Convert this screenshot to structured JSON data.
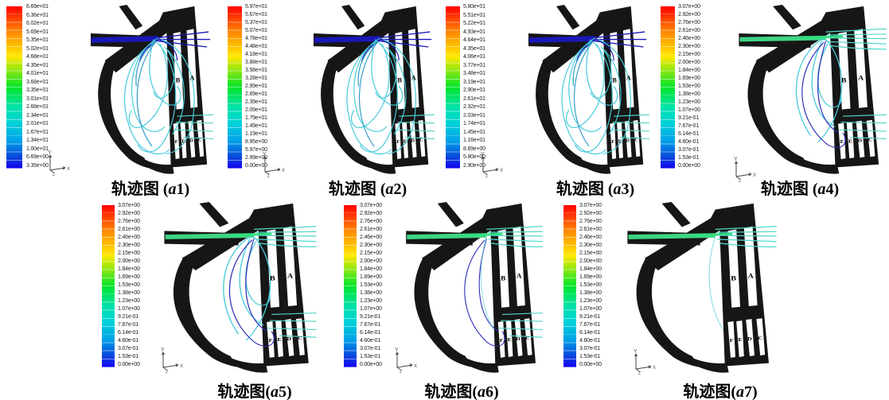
{
  "colors": {
    "mesh": "#161616",
    "jet_blue": "#1a17b8",
    "stream_cyan": "#45cbd9",
    "stream_teal": "#2f9cc8",
    "stream_dark": "#2b2bb5",
    "stream_green": "#3ed584",
    "stream_green2": "#2fe07c",
    "exit_aqua": "#52d8c8",
    "cb_top": "#ff0000",
    "cb_orange": "#ff8a00",
    "cb_yellow": "#ffe900",
    "cb_green": "#00e52a",
    "cb_spring": "#00e2a8",
    "cb_cyan": "#00d2d8",
    "cb_skyblue": "#00a0e8",
    "cb_blue": "#0a46dc",
    "cb_bottom": "#1400f0"
  },
  "axis_triad": {
    "y": "Y",
    "x": "X",
    "z": "Z"
  },
  "slat_labels": {
    "upper": [
      "B",
      "A"
    ],
    "lower": [
      "F",
      "E",
      "D",
      "C"
    ]
  },
  "panels": [
    {
      "id": "a1",
      "caption_prefix": "轨迹图 (",
      "caption_italic": "a",
      "caption_suffix": "1)",
      "colorbar_labels": [
        "6.69e+01",
        "6.36e+01",
        "6.02e+01",
        "5.69e+01",
        "5.35e+01",
        "5.02e+01",
        "4.68e+01",
        "4.35e+01",
        "4.01e+01",
        "3.68e+01",
        "3.35e+01",
        "3.01e+01",
        "2.68e+01",
        "2.34e+01",
        "2.01e+01",
        "1.67e+01",
        "1.34e+01",
        "1.00e+01",
        "6.69e+00",
        "3.35e+00"
      ]
    },
    {
      "id": "a2",
      "caption_prefix": "轨迹图 (",
      "caption_italic": "a",
      "caption_suffix": "2)",
      "colorbar_labels": [
        "5.97e+01",
        "5.67e+01",
        "5.37e+01",
        "5.07e+01",
        "4.78e+01",
        "4.48e+01",
        "4.18e+01",
        "3.88e+01",
        "3.58e+01",
        "3.28e+01",
        "2.99e+01",
        "2.69e+01",
        "2.39e+01",
        "2.09e+01",
        "1.79e+01",
        "1.49e+01",
        "1.19e+01",
        "8.95e+00",
        "5.97e+00",
        "2.99e+00",
        "0.00e+00"
      ]
    },
    {
      "id": "a3",
      "caption_prefix": "轨迹图 (",
      "caption_italic": "a",
      "caption_suffix": "3)",
      "colorbar_labels": [
        "5.80e+01",
        "5.51e+01",
        "5.22e+01",
        "4.93e+01",
        "4.64e+01",
        "4.35e+01",
        "4.06e+01",
        "3.77e+01",
        "3.48e+01",
        "3.19e+01",
        "2.90e+01",
        "2.61e+01",
        "2.32e+01",
        "2.03e+01",
        "1.74e+01",
        "1.45e+01",
        "1.16e+01",
        "8.69e+00",
        "5.80e+00",
        "2.90e+00"
      ]
    },
    {
      "id": "a4",
      "caption_prefix": "轨迹图 (",
      "caption_italic": "a",
      "caption_suffix": "4)",
      "colorbar_labels": [
        "3.07e+00",
        "2.92e+00",
        "2.76e+00",
        "2.61e+00",
        "2.46e+00",
        "2.30e+00",
        "2.15e+00",
        "2.00e+00",
        "1.84e+00",
        "1.69e+00",
        "1.53e+00",
        "1.38e+00",
        "1.23e+00",
        "1.07e+00",
        "9.21e-01",
        "7.67e-01",
        "6.14e-01",
        "4.60e-01",
        "3.07e-01",
        "1.53e-01",
        "0.00e+00"
      ]
    },
    {
      "id": "a5",
      "caption_prefix": "轨迹图(",
      "caption_italic": "a",
      "caption_suffix": "5)",
      "colorbar_labels": [
        "3.07e+00",
        "2.92e+00",
        "2.76e+00",
        "2.61e+00",
        "2.46e+00",
        "2.30e+00",
        "2.15e+00",
        "2.00e+00",
        "1.84e+00",
        "1.69e+00",
        "1.53e+00",
        "1.38e+00",
        "1.23e+00",
        "1.07e+00",
        "9.21e-01",
        "7.67e-01",
        "6.14e-01",
        "4.60e-01",
        "3.07e-01",
        "1.53e-01",
        "0.00e+00"
      ]
    },
    {
      "id": "a6",
      "caption_prefix": "轨迹图(",
      "caption_italic": "a",
      "caption_suffix": "6)",
      "colorbar_labels": [
        "3.07e+00",
        "2.92e+00",
        "2.76e+00",
        "2.61e+00",
        "2.46e+00",
        "2.30e+00",
        "2.15e+00",
        "2.00e+00",
        "1.84e+00",
        "1.69e+00",
        "1.53e+00",
        "1.38e+00",
        "1.23e+00",
        "1.07e+00",
        "9.21e-01",
        "7.67e-01",
        "6.14e-01",
        "4.60e-01",
        "3.07e-01",
        "1.53e-01",
        "0.00e+00"
      ]
    },
    {
      "id": "a7",
      "caption_prefix": "轨迹图(",
      "caption_italic": "a",
      "caption_suffix": "7)",
      "colorbar_labels": [
        "3.07e+00",
        "2.92e+00",
        "2.76e+00",
        "2.61e+00",
        "2.46e+00",
        "2.30e+00",
        "2.15e+00",
        "2.00e+00",
        "1.84e+00",
        "1.69e+00",
        "1.53e+00",
        "1.38e+00",
        "1.23e+00",
        "1.07e+00",
        "9.21e-01",
        "7.67e-01",
        "6.14e-01",
        "4.60e-01",
        "3.07e-01",
        "1.53e-01",
        "0.00e+00"
      ]
    }
  ]
}
